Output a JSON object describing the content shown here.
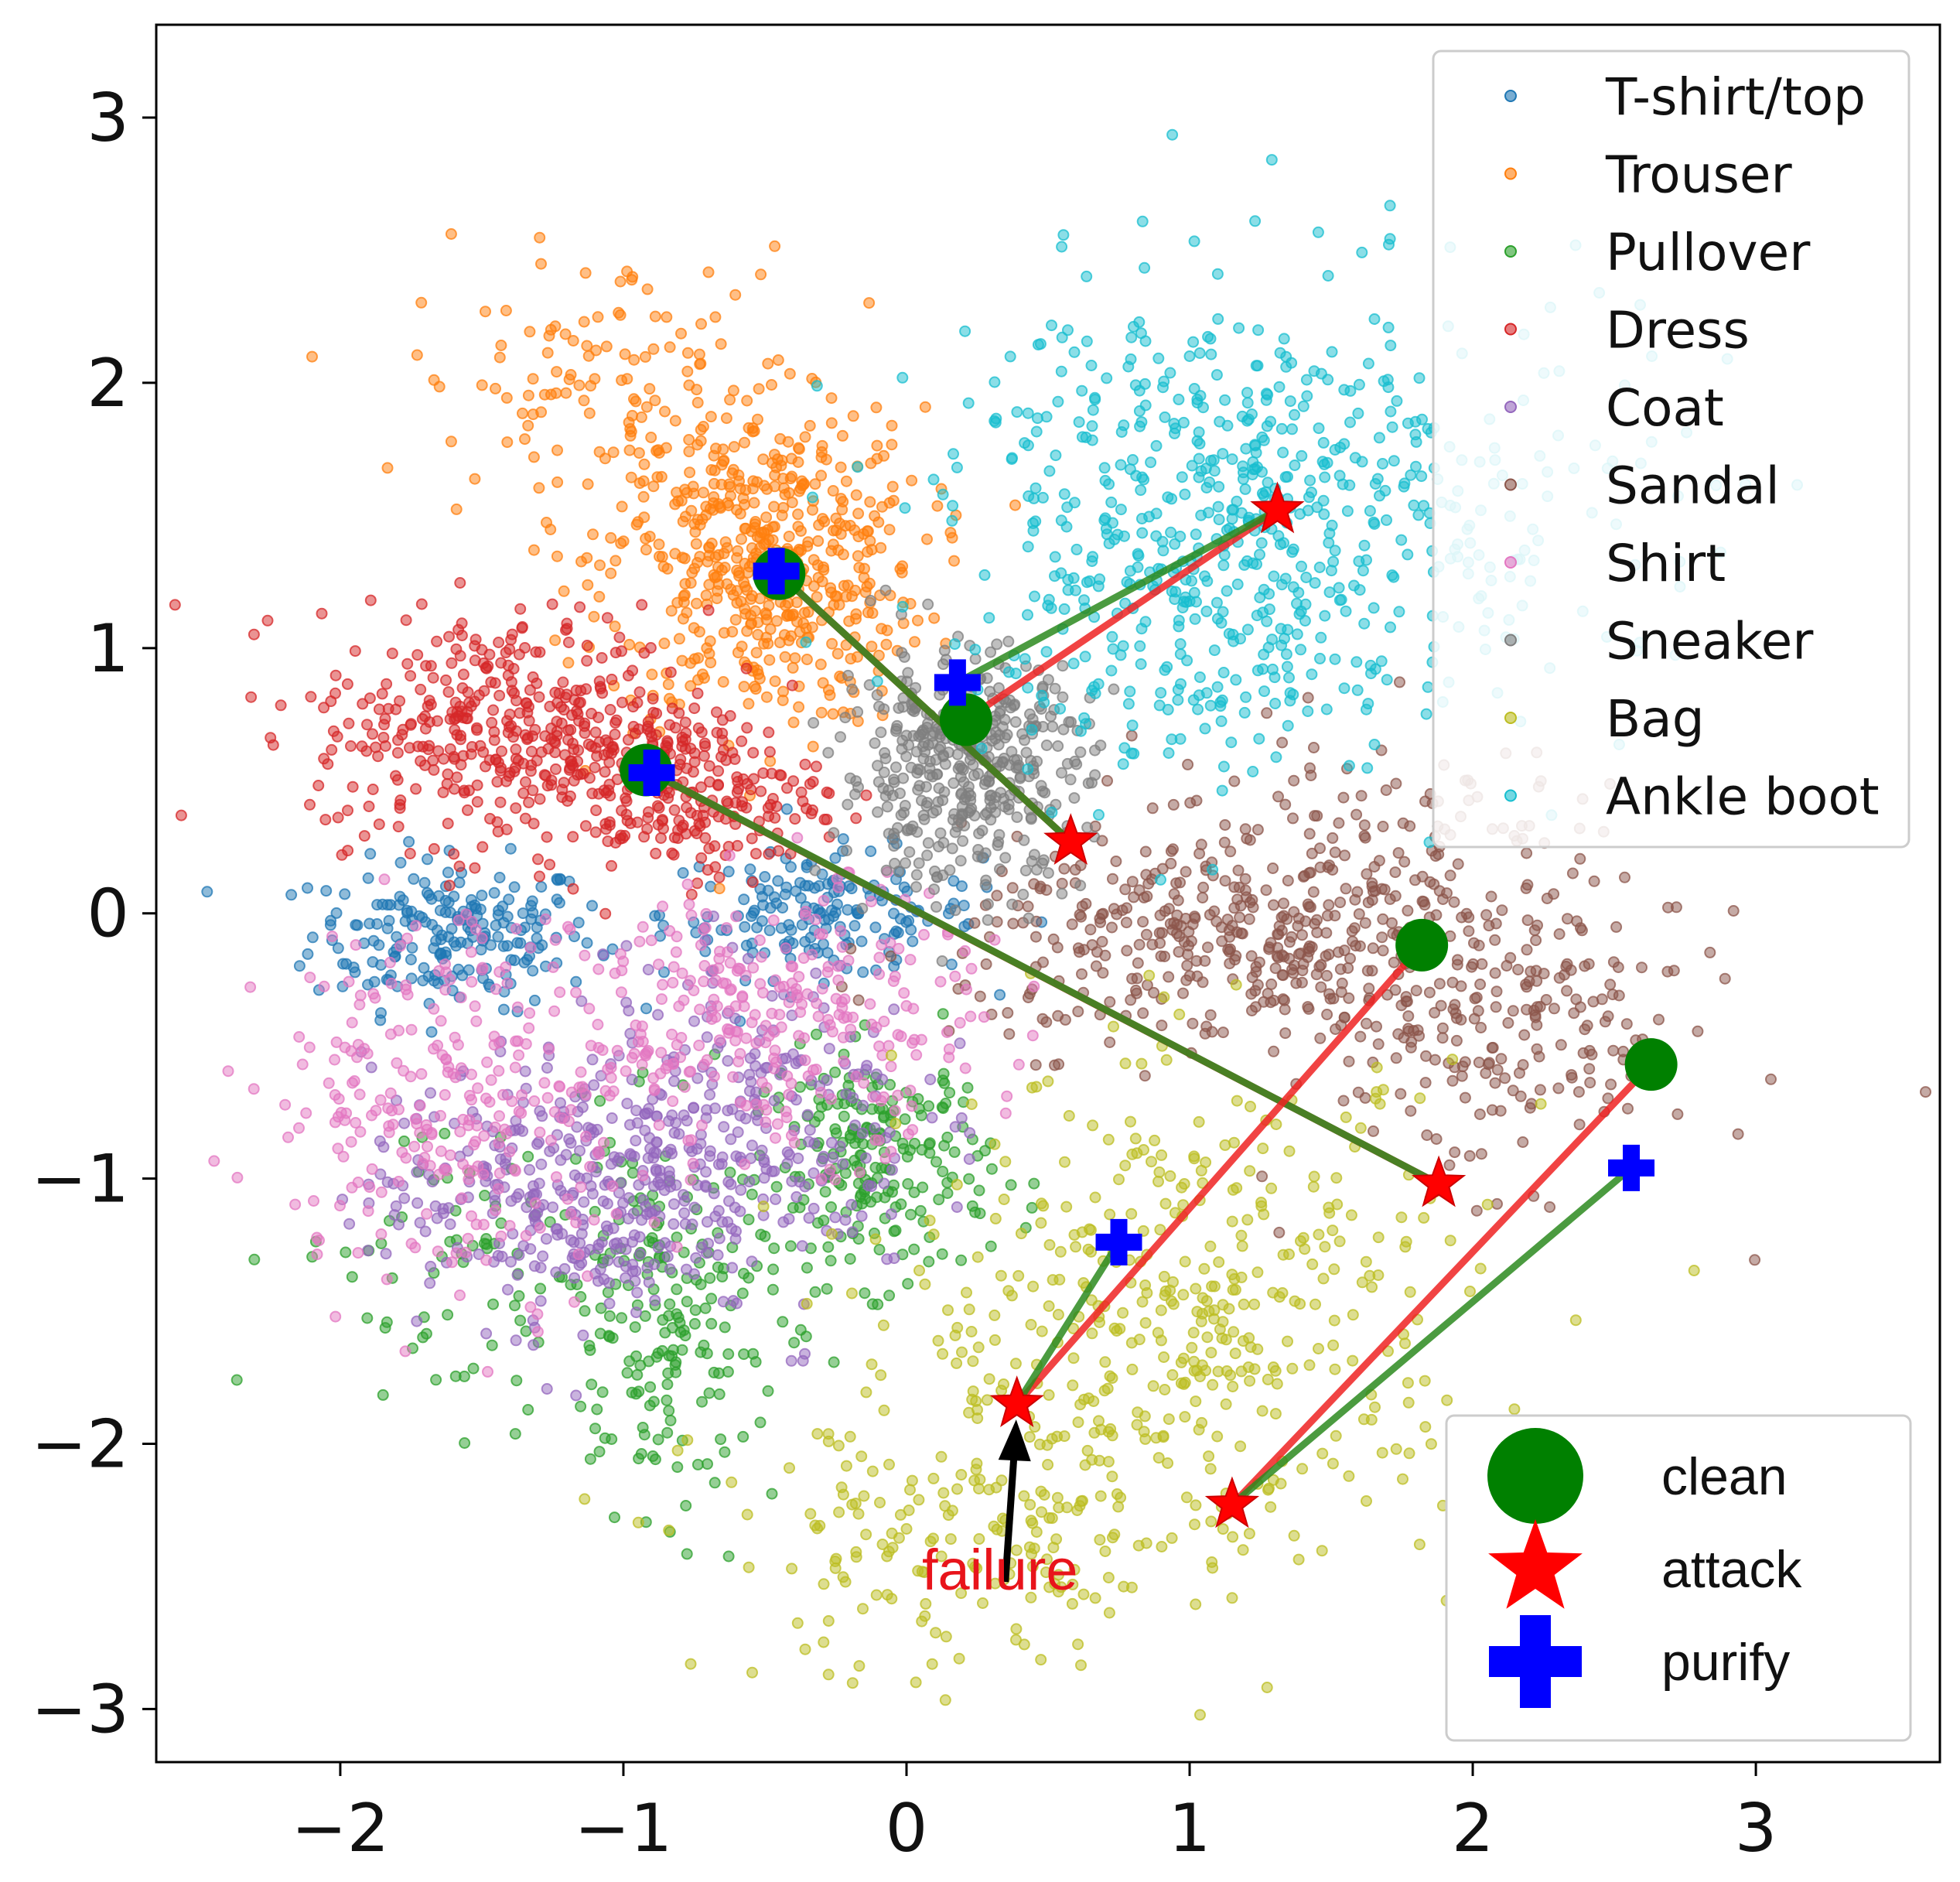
{
  "chart_data": {
    "type": "scatter",
    "title": "",
    "xlabel": "",
    "ylabel": "",
    "xlim": [
      -2.65,
      3.65
    ],
    "ylim": [
      -3.2,
      3.35
    ],
    "xticks": [
      -2,
      -1,
      0,
      1,
      2,
      3
    ],
    "yticks": [
      -3,
      -2,
      -1,
      0,
      1,
      2,
      3
    ],
    "xtick_labels": [
      "−2",
      "−1",
      "0",
      "1",
      "2",
      "3"
    ],
    "ytick_labels": [
      "−3",
      "−2",
      "−1",
      "0",
      "1",
      "2",
      "3"
    ],
    "grid": false,
    "legend_position": "top-right",
    "marker_legend_position": "bottom-right",
    "clusters": [
      {
        "name": "T-shirt/top",
        "color": "#1f77b4",
        "count": 380,
        "blobs": [
          {
            "cx": -1.6,
            "cy": -0.08,
            "sx": 0.25,
            "sy": 0.14,
            "w": 0.55
          },
          {
            "cx": -0.3,
            "cy": 0.0,
            "sx": 0.28,
            "sy": 0.12,
            "w": 0.45
          }
        ]
      },
      {
        "name": "Trouser",
        "color": "#ff7f0e",
        "count": 650,
        "blobs": [
          {
            "cx": -0.5,
            "cy": 1.3,
            "sx": 0.28,
            "sy": 0.3,
            "w": 0.8
          },
          {
            "cx": -1.05,
            "cy": 2.0,
            "sx": 0.35,
            "sy": 0.25,
            "w": 0.2
          }
        ]
      },
      {
        "name": "Pullover",
        "color": "#2ca02c",
        "count": 480,
        "blobs": [
          {
            "cx": -0.1,
            "cy": -0.95,
            "sx": 0.2,
            "sy": 0.22,
            "w": 0.45
          },
          {
            "cx": -0.85,
            "cy": -1.55,
            "sx": 0.2,
            "sy": 0.35,
            "w": 0.4
          },
          {
            "cx": -1.6,
            "cy": -1.3,
            "sx": 0.3,
            "sy": 0.3,
            "w": 0.15
          }
        ]
      },
      {
        "name": "Dress",
        "color": "#d62728",
        "count": 620,
        "blobs": [
          {
            "cx": -1.4,
            "cy": 0.7,
            "sx": 0.35,
            "sy": 0.22,
            "w": 0.65
          },
          {
            "cx": -0.8,
            "cy": 0.45,
            "sx": 0.25,
            "sy": 0.15,
            "w": 0.35
          }
        ]
      },
      {
        "name": "Coat",
        "color": "#9467bd",
        "count": 560,
        "blobs": [
          {
            "cx": -1.2,
            "cy": -1.05,
            "sx": 0.35,
            "sy": 0.25,
            "w": 0.6
          },
          {
            "cx": -0.55,
            "cy": -0.75,
            "sx": 0.3,
            "sy": 0.3,
            "w": 0.4
          }
        ]
      },
      {
        "name": "Sandal",
        "color": "#8c564b",
        "count": 700,
        "blobs": [
          {
            "cx": 1.2,
            "cy": -0.1,
            "sx": 0.5,
            "sy": 0.2,
            "w": 0.6
          },
          {
            "cx": 2.1,
            "cy": -0.4,
            "sx": 0.35,
            "sy": 0.3,
            "w": 0.3
          },
          {
            "cx": 1.7,
            "cy": 0.35,
            "sx": 0.4,
            "sy": 0.2,
            "w": 0.1
          }
        ]
      },
      {
        "name": "Shirt",
        "color": "#e377c2",
        "count": 560,
        "blobs": [
          {
            "cx": -0.45,
            "cy": -0.4,
            "sx": 0.35,
            "sy": 0.25,
            "w": 0.5
          },
          {
            "cx": -1.55,
            "cy": -0.7,
            "sx": 0.35,
            "sy": 0.35,
            "w": 0.5
          }
        ]
      },
      {
        "name": "Sneaker",
        "color": "#7f7f7f",
        "count": 420,
        "blobs": [
          {
            "cx": 0.2,
            "cy": 0.55,
            "sx": 0.22,
            "sy": 0.22,
            "w": 1.0
          }
        ]
      },
      {
        "name": "Bag",
        "color": "#bcbd22",
        "count": 600,
        "blobs": [
          {
            "cx": 1.0,
            "cy": -1.5,
            "sx": 0.5,
            "sy": 0.45,
            "w": 0.7
          },
          {
            "cx": 0.2,
            "cy": -2.4,
            "sx": 0.45,
            "sy": 0.25,
            "w": 0.3
          }
        ]
      },
      {
        "name": "Ankle boot",
        "color": "#17becf",
        "count": 700,
        "blobs": [
          {
            "cx": 1.05,
            "cy": 1.45,
            "sx": 0.45,
            "sy": 0.45,
            "w": 0.8
          },
          {
            "cx": 2.0,
            "cy": 1.5,
            "sx": 0.45,
            "sy": 0.45,
            "w": 0.2
          }
        ]
      }
    ],
    "trajectories": [
      {
        "clean": [
          -0.45,
          1.28
        ],
        "attack": [
          0.58,
          0.27
        ],
        "purify": [
          -0.46,
          1.29
        ]
      },
      {
        "clean": [
          0.21,
          0.73
        ],
        "attack": [
          1.31,
          1.52
        ],
        "purify": [
          0.18,
          0.87
        ]
      },
      {
        "clean": [
          -0.92,
          0.54
        ],
        "attack": [
          1.88,
          -1.02
        ],
        "purify": [
          -0.9,
          0.53
        ]
      },
      {
        "clean": [
          1.82,
          -0.12
        ],
        "attack": [
          0.39,
          -1.85
        ],
        "purify": [
          0.75,
          -1.24
        ]
      },
      {
        "clean": [
          2.63,
          -0.57
        ],
        "attack": [
          1.15,
          -2.23
        ],
        "purify": [
          2.56,
          -0.96
        ]
      }
    ],
    "marker_legend": [
      {
        "label": "clean",
        "symbol": "circle",
        "color": "#008000"
      },
      {
        "label": "attack",
        "symbol": "star",
        "color": "#ff0000"
      },
      {
        "label": "purify",
        "symbol": "plus",
        "color": "#0000ff"
      }
    ],
    "annotation": {
      "text": "failure",
      "color": "#e8141b",
      "points_to": [
        0.39,
        -1.85
      ],
      "text_at": [
        0.33,
        -2.55
      ]
    },
    "line_colors": {
      "attack_line": "#ee2222",
      "purify_line": "#2b8a1f"
    }
  }
}
